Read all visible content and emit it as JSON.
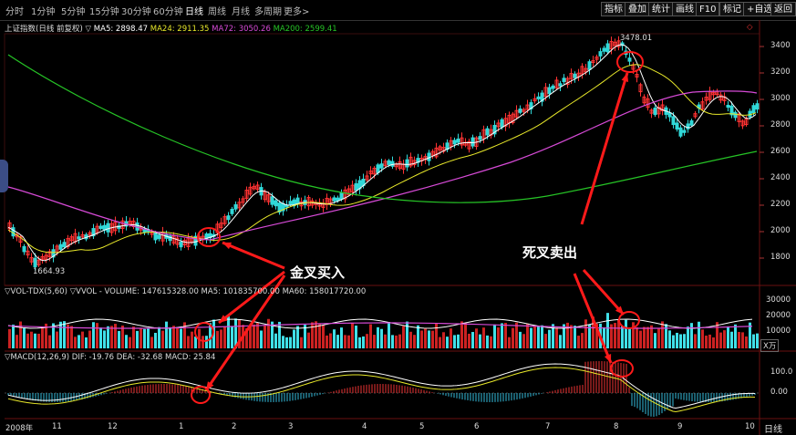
{
  "toolbar": {
    "tabs": [
      "分时",
      "1分钟",
      "5分钟",
      "15分钟",
      "30分钟",
      "60分钟",
      "日线",
      "周线",
      "月线",
      "多周期",
      "更多>"
    ],
    "buttons": [
      "指标",
      "叠加",
      "统计",
      "画线",
      "F10",
      "标记",
      "+自选",
      "返回"
    ]
  },
  "main": {
    "index_name": "上证指数(日线 前复权)",
    "ma_labels": [
      "MA5: 2898.47",
      "MA24: 2911.35",
      "MA72: 3050.26",
      "MA200: 2599.41"
    ],
    "price_ticks": [
      "3400",
      "3200",
      "3000",
      "2800",
      "2600",
      "2400",
      "2200",
      "2000",
      "1800"
    ],
    "high_label": "3478.01",
    "low_label": "1664.93",
    "ma_colors": [
      "#ffffff",
      "#e8e82a",
      "#d64ad6",
      "#26c426"
    ]
  },
  "volume": {
    "header": "▽VOL-TDX(5,60)  ▽VVOL -  VOLUME: 147615328.00  MA5: 101835700.00  MA60: 158017720.00",
    "ticks": [
      "30000",
      "20000",
      "10000"
    ],
    "unit": "X万"
  },
  "macd": {
    "header": "▽MACD(12,26,9)  DIF: -19.76  DEA: -32.68  MACD: 25.84",
    "ticks": [
      "100.0",
      "0.00"
    ]
  },
  "date_axis": {
    "labels": [
      "2008年",
      "11",
      "12",
      "1",
      "2",
      "3",
      "4",
      "5",
      "6",
      "7",
      "8",
      "9",
      "10"
    ],
    "period_label": "日线"
  },
  "annotations": {
    "golden_cross": "金叉买入",
    "death_cross": "死叉卖出"
  }
}
